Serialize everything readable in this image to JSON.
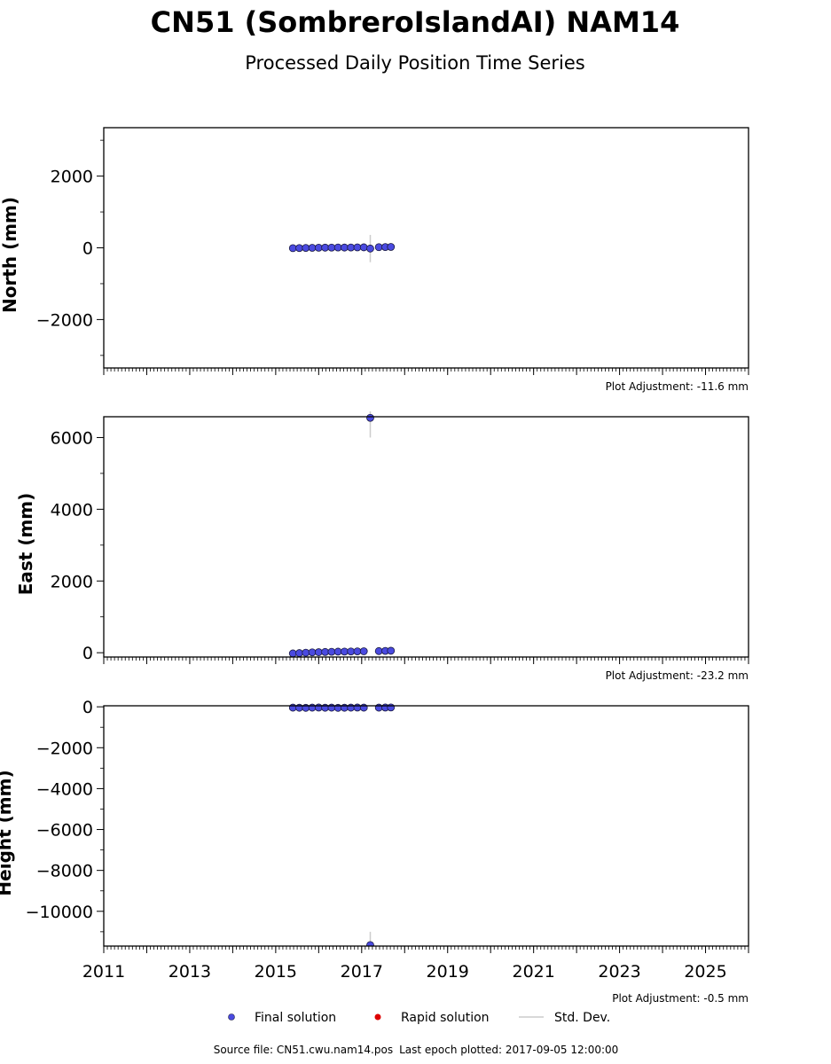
{
  "title": "CN51 (SombreroIslandAI) NAM14",
  "subtitle": "Processed Daily Position Time Series",
  "footer": {
    "source_label": "Source file: CN51.cwu.nam14.pos",
    "last_epoch_label": "Last epoch plotted: 2017-09-05 12:00:00"
  },
  "legend": {
    "final": "Final solution",
    "rapid": "Rapid solution",
    "stddev": "Std. Dev."
  },
  "colors": {
    "final": "#4a4ae0",
    "final_edge": "#1a1a40",
    "rapid": "#dd0000",
    "stddev": "#cccccc"
  },
  "chart_data": [
    {
      "type": "scatter",
      "panel": "north",
      "ylabel": "North (mm)",
      "ylim": [
        -3350,
        3350
      ],
      "yticks": [
        -2000,
        0,
        2000
      ],
      "ytick_labels": [
        "−2000",
        "0",
        "2000"
      ],
      "xlim": [
        2011.0,
        2026.0
      ],
      "adjustment": "Plot Adjustment: -11.6 mm",
      "series": [
        {
          "x": [
            2015.4,
            2015.55,
            2015.7,
            2015.85,
            2016.0,
            2016.15,
            2016.3,
            2016.45,
            2016.6,
            2016.75,
            2016.9,
            2017.05,
            2017.2,
            2017.4,
            2017.55,
            2017.68
          ],
          "y": [
            -10,
            -6,
            -3,
            0,
            3,
            5,
            7,
            9,
            8,
            10,
            12,
            14,
            -20,
            18,
            22,
            25
          ],
          "err": [
            30,
            30,
            30,
            30,
            30,
            30,
            30,
            30,
            30,
            30,
            30,
            30,
            380,
            30,
            30,
            30
          ]
        }
      ]
    },
    {
      "type": "scatter",
      "panel": "east",
      "ylabel": "East (mm)",
      "ylim": [
        -120,
        6580
      ],
      "yticks": [
        0,
        2000,
        4000,
        6000
      ],
      "ytick_labels": [
        "0",
        "2000",
        "4000",
        "6000"
      ],
      "xlim": [
        2011.0,
        2026.0
      ],
      "adjustment": "Plot Adjustment: -23.2 mm",
      "series": [
        {
          "x": [
            2015.4,
            2015.55,
            2015.7,
            2015.85,
            2016.0,
            2016.15,
            2016.3,
            2016.45,
            2016.6,
            2016.75,
            2016.9,
            2017.05,
            2017.2,
            2017.4,
            2017.55,
            2017.68
          ],
          "y": [
            -20,
            -10,
            0,
            10,
            15,
            20,
            25,
            30,
            32,
            35,
            38,
            40,
            6550,
            45,
            50,
            55
          ],
          "err": [
            30,
            30,
            30,
            30,
            30,
            30,
            30,
            30,
            30,
            30,
            30,
            30,
            550,
            30,
            30,
            30
          ]
        }
      ]
    },
    {
      "type": "scatter",
      "panel": "height",
      "ylabel": "Height (mm)",
      "ylim": [
        -11700,
        50
      ],
      "yticks": [
        -10000,
        -8000,
        -6000,
        -4000,
        -2000,
        0
      ],
      "ytick_labels": [
        "−10000",
        "−8000",
        "−6000",
        "−4000",
        "−2000",
        "0"
      ],
      "xlim": [
        2011.0,
        2026.0
      ],
      "xticks": [
        2011,
        2013,
        2015,
        2017,
        2019,
        2021,
        2023,
        2025
      ],
      "xtick_labels": [
        "2011",
        "2013",
        "2015",
        "2017",
        "2019",
        "2021",
        "2023",
        "2025"
      ],
      "adjustment": "Plot Adjustment: -0.5 mm",
      "series": [
        {
          "x": [
            2015.4,
            2015.55,
            2015.7,
            2015.85,
            2016.0,
            2016.15,
            2016.3,
            2016.45,
            2016.6,
            2016.75,
            2016.9,
            2017.05,
            2017.2,
            2017.4,
            2017.55,
            2017.68
          ],
          "y": [
            -40,
            -45,
            -50,
            -40,
            -35,
            -45,
            -40,
            -50,
            -45,
            -40,
            -35,
            -40,
            -11650,
            -40,
            -35,
            -30
          ],
          "err": [
            40,
            40,
            40,
            40,
            40,
            40,
            40,
            40,
            40,
            40,
            40,
            40,
            650,
            40,
            40,
            40
          ]
        }
      ]
    }
  ]
}
